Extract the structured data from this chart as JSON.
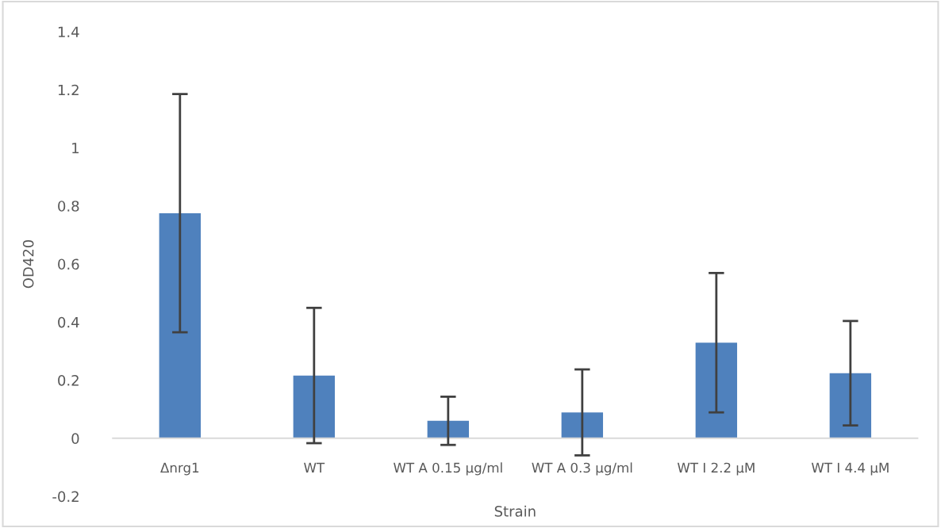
{
  "chart_data": {
    "type": "bar",
    "xlabel": "Strain",
    "ylabel": "OD420",
    "categories": [
      "Δnrg1",
      "WT",
      "WT A 0.15 µg/ml",
      "WT A 0.3 µg/ml",
      "WT I 2.2 µM",
      "WT I 4.4 µM"
    ],
    "values": [
      0.775,
      0.216,
      0.06,
      0.089,
      0.329,
      0.224
    ],
    "errors": [
      0.41,
      0.233,
      0.083,
      0.148,
      0.24,
      0.18
    ],
    "color": "#4f81bd",
    "ylim": [
      -0.2,
      1.4
    ],
    "yticks": [
      -0.2,
      0,
      0.2,
      0.4,
      0.6,
      0.8,
      1,
      1.2,
      1.4
    ],
    "grid": false
  }
}
